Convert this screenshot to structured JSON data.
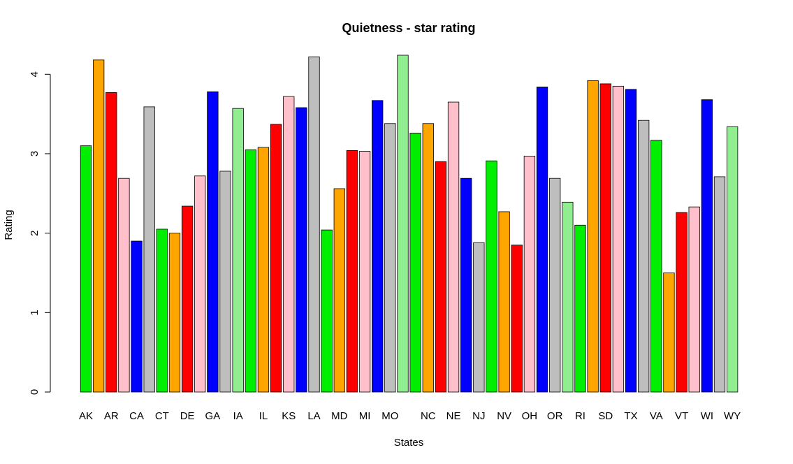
{
  "chart_data": {
    "type": "bar",
    "title": "Quietness - star rating",
    "x_label": "States",
    "y_label": "Rating",
    "categories": [
      "AK",
      null,
      "AR",
      null,
      "CA",
      null,
      "CT",
      null,
      "DE",
      null,
      "GA",
      null,
      "IA",
      null,
      "IL",
      null,
      "KS",
      null,
      "LA",
      null,
      "MD",
      null,
      "MI",
      null,
      "MO",
      null,
      null,
      "NC",
      null,
      "NE",
      null,
      "NJ",
      null,
      "NV",
      null,
      "OH",
      null,
      "OR",
      null,
      "RI",
      null,
      "SD",
      null,
      "TX",
      null,
      "VA",
      null,
      "VT",
      null,
      "WI",
      null,
      "WY"
    ],
    "values": [
      3.1,
      4.18,
      3.77,
      2.69,
      1.9,
      3.59,
      2.05,
      2.0,
      2.34,
      2.72,
      3.78,
      2.78,
      3.57,
      3.05,
      3.08,
      3.37,
      3.72,
      3.58,
      4.22,
      2.04,
      2.56,
      3.04,
      3.03,
      3.67,
      3.38,
      4.24,
      3.26,
      3.38,
      2.9,
      3.65,
      2.69,
      1.88,
      2.91,
      2.27,
      1.85,
      2.97,
      3.84,
      2.69,
      2.39,
      2.1,
      3.92,
      3.88,
      3.85,
      3.81,
      3.42,
      3.17,
      1.5,
      2.26,
      2.33,
      3.68,
      2.71,
      3.34
    ],
    "colors": [
      "#00ee00",
      "#ffa500",
      "#ff0000",
      "#ffc0cb",
      "#0000ff",
      "#bebebe",
      "#00ee00",
      "#ffa500",
      "#ff0000",
      "#ffc0cb",
      "#0000ff",
      "#bebebe",
      "#90ee90",
      "#00ee00",
      "#ffa500",
      "#ff0000",
      "#ffc0cb",
      "#0000ff",
      "#bebebe",
      "#00ee00",
      "#ffa500",
      "#ff0000",
      "#ffc0cb",
      "#0000ff",
      "#bebebe",
      "#90ee90",
      "#00ee00",
      "#ffa500",
      "#ff0000",
      "#ffc0cb",
      "#0000ff",
      "#bebebe",
      "#00ee00",
      "#ffa500",
      "#ff0000",
      "#ffc0cb",
      "#0000ff",
      "#bebebe",
      "#90ee90",
      "#00ee00",
      "#ffa500",
      "#ff0000",
      "#ffc0cb",
      "#0000ff",
      "#bebebe",
      "#00ee00",
      "#ffa500",
      "#ff0000",
      "#ffc0cb",
      "#0000ff",
      "#bebebe",
      "#90ee90"
    ],
    "ylim": [
      0,
      4.24
    ],
    "yticks": [
      0,
      1,
      2,
      3,
      4
    ]
  }
}
